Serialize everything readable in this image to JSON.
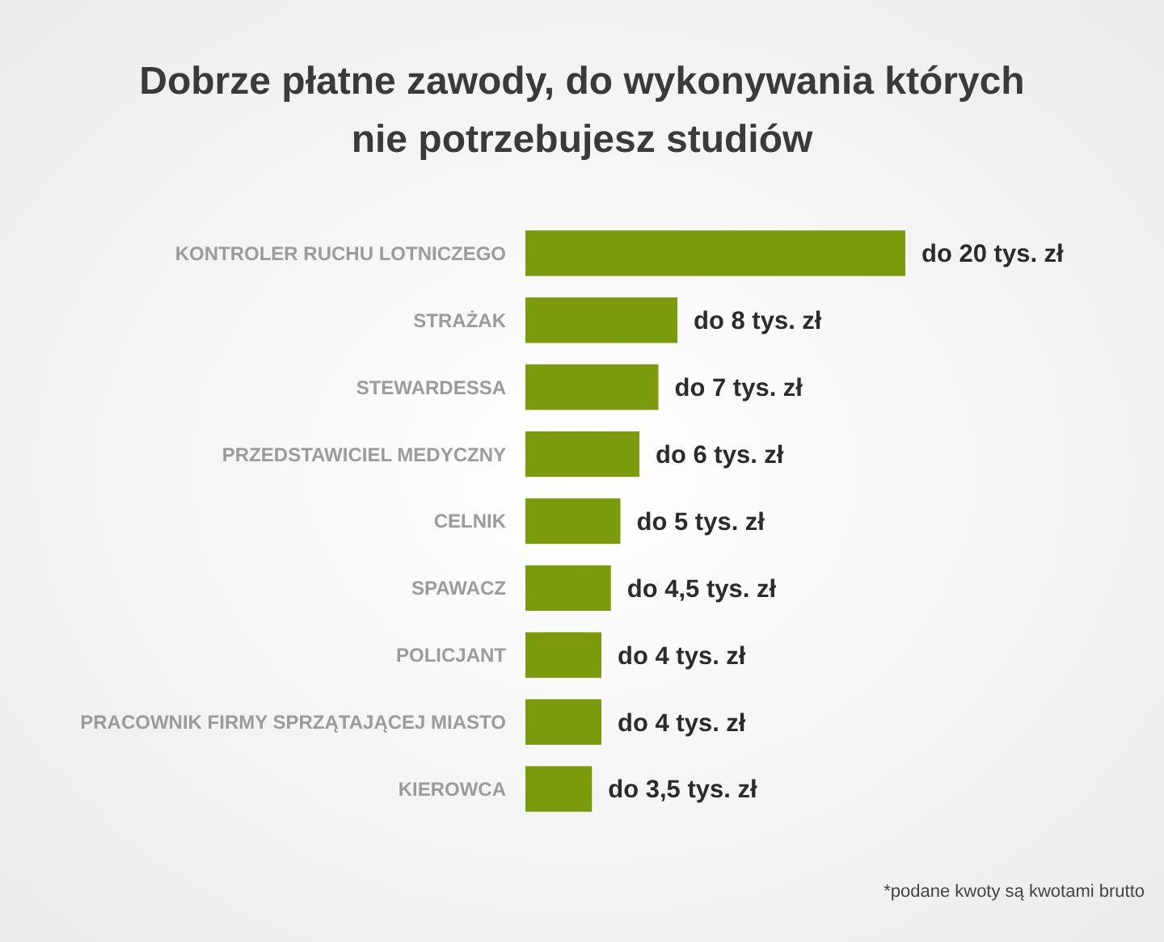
{
  "chart_data": {
    "type": "bar",
    "orientation": "horizontal",
    "title": "Dobrze płatne zawody, do wykonywania których\nnie potrzebujesz studiów",
    "categories": [
      "KONTROLER RUCHU LOTNICZEGO",
      "STRAŻAK",
      "STEWARDESSA",
      "PRZEDSTAWICIEL MEDYCZNY",
      "CELNIK",
      "SPAWACZ",
      "POLICJANT",
      "PRACOWNIK FIRMY SPRZĄTAJĄCEJ MIASTO",
      "KIEROWCA"
    ],
    "values": [
      20,
      8,
      7,
      6,
      5,
      4.5,
      4,
      4,
      3.5
    ],
    "value_labels": [
      "do 20 tys. zł",
      "do 8 tys. zł",
      "do 7 tys. zł",
      "do 6 tys. zł",
      "do 5 tys. zł",
      "do 4,5 tys. zł",
      "do 4 tys. zł",
      "do 4 tys. zł",
      "do 3,5 tys. zł"
    ],
    "color": "#7b9a0c",
    "annotations": [
      "*podane kwoty są kwotami brutto"
    ]
  }
}
